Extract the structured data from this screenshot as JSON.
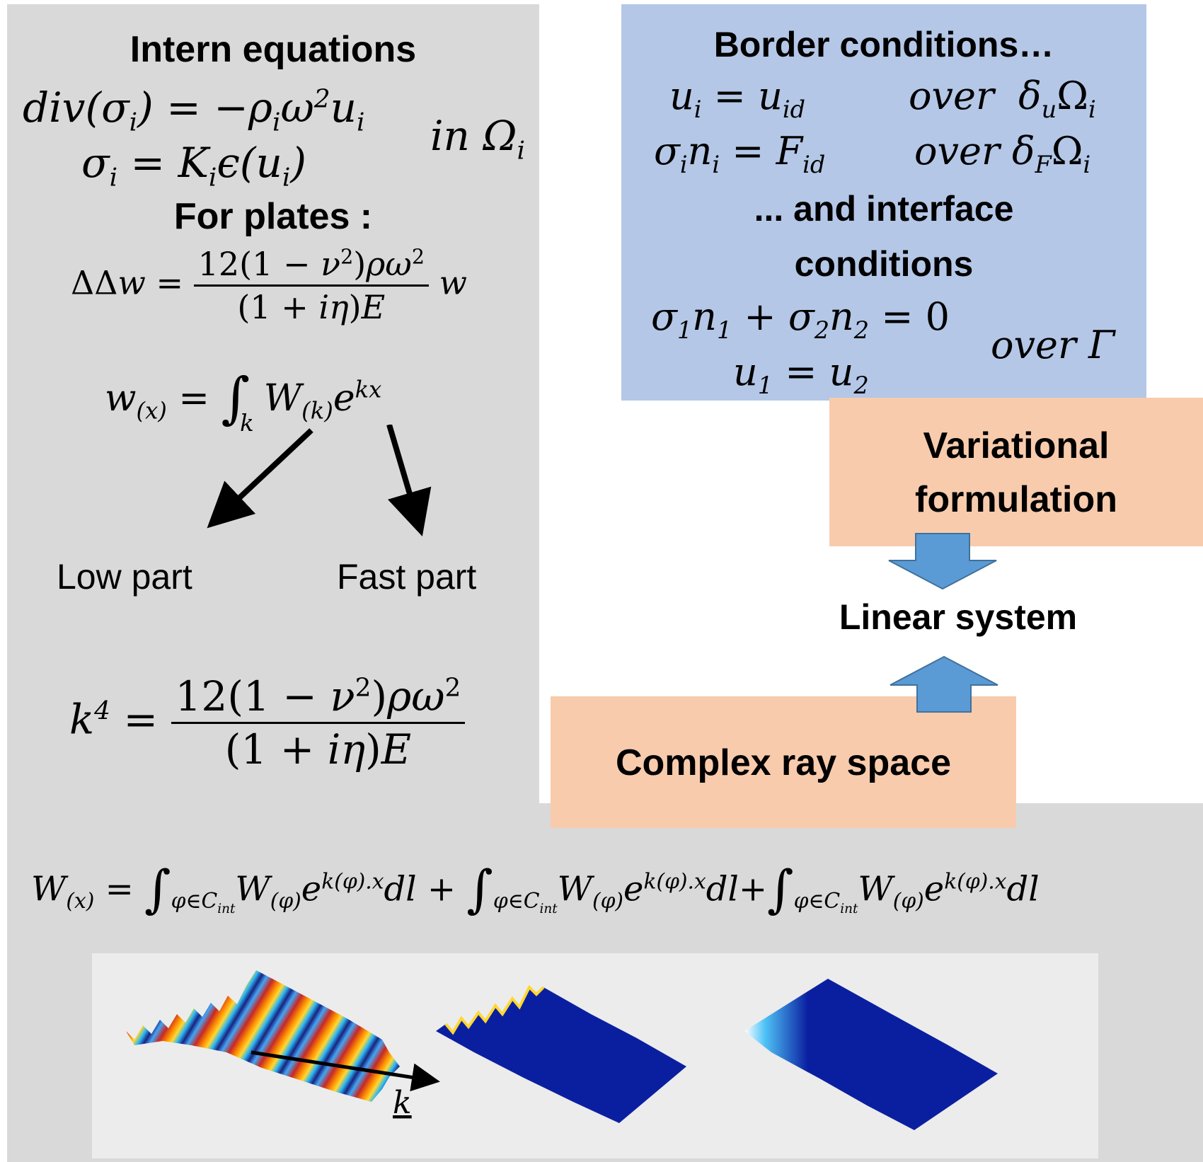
{
  "intern": {
    "heading": "Intern equations",
    "plates_heading": "For plates :",
    "domain_label": "in Ω",
    "domain_sub": "i"
  },
  "branches": {
    "low_label": "Low part",
    "fast_label": "Fast part"
  },
  "border": {
    "heading": "Border conditions…",
    "interface_line1": "... and interface",
    "interface_line2": "conditions",
    "over_gamma": "over Γ"
  },
  "flow": {
    "variational_line1": "Variational",
    "variational_line2": "formulation",
    "linear_system": "Linear system",
    "complex_ray_space": "Complex ray space"
  },
  "figure": {
    "wave_vector_label": "k"
  },
  "colors": {
    "gray_panel": "#d9d9d9",
    "blue_panel": "#b4c7e7",
    "orange_box": "#f8cbad",
    "arrow_blue": "#5b9bd5",
    "plate_blue": "#0a1fa0"
  }
}
